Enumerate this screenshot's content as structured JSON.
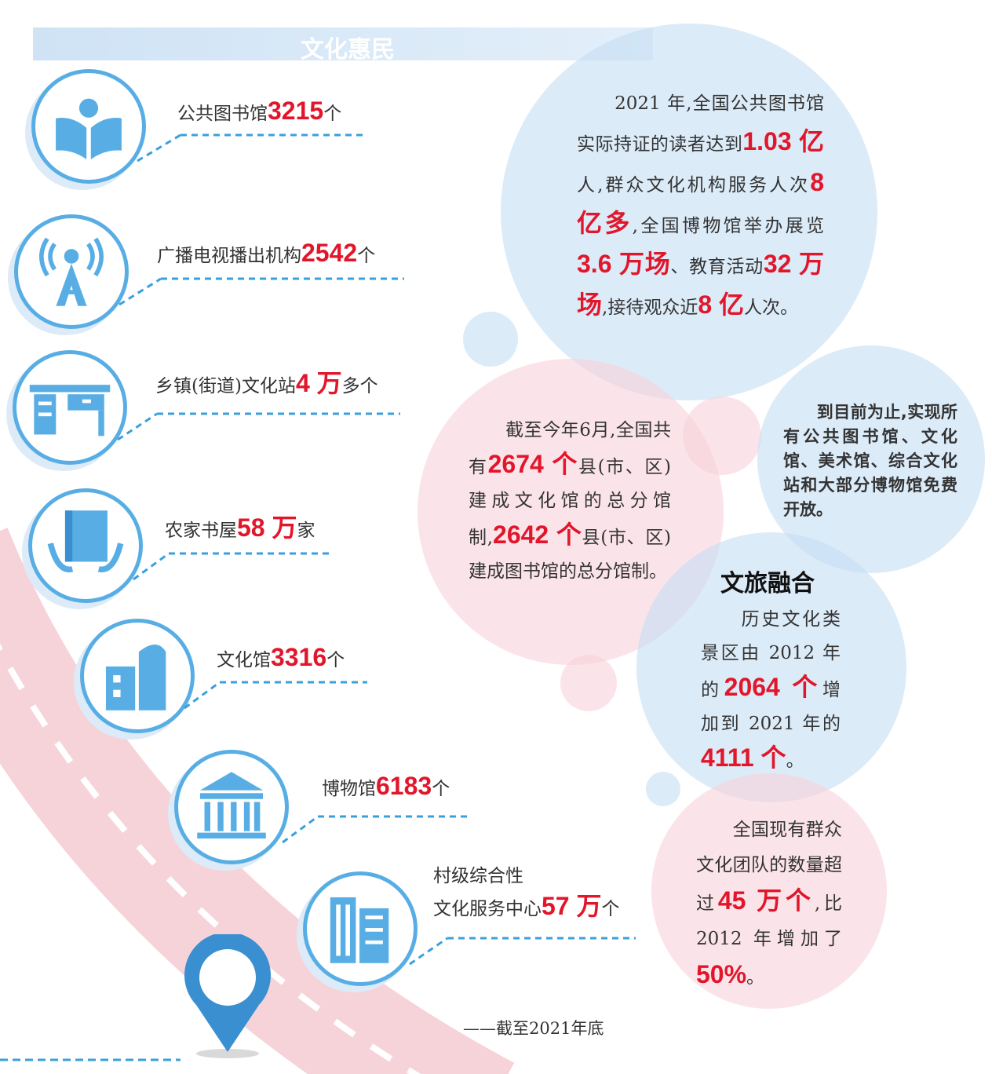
{
  "header": {
    "title": "文化惠民"
  },
  "colors": {
    "accent_red": "#e2162b",
    "blue": "#58aee4",
    "light_blue": "#c4def4",
    "pink": "#f8d2da"
  },
  "items": [
    {
      "icon": "library-reader-icon",
      "pre": "公共图书馆",
      "num": "3215",
      "post": "个"
    },
    {
      "icon": "broadcast-tower-icon",
      "pre": "广播电视播出机构",
      "num": "2542",
      "post": "个"
    },
    {
      "icon": "culture-station-desk-icon",
      "pre": "乡镇(街道)文化站",
      "num": "4 万",
      "post": "多个"
    },
    {
      "icon": "book-hands-icon",
      "pre": "农家书屋",
      "num": "58 万",
      "post": "家"
    },
    {
      "icon": "culture-hall-building-icon",
      "pre": "文化馆",
      "num": "3316",
      "post": "个"
    },
    {
      "icon": "museum-icon",
      "pre": "博物馆",
      "num": "6183",
      "post": "个"
    },
    {
      "icon": "service-center-building-icon",
      "pre": "村级综合性",
      "pre2": "文化服务中心",
      "num": "57 万",
      "post": "个"
    }
  ],
  "bubbles": {
    "readers": [
      {
        "t": "　　2021 年,全国公共图书馆实际持证的读者达到"
      },
      {
        "t": "1.03 亿",
        "hl": true
      },
      {
        "t": "人,群众文化机构服务人次"
      },
      {
        "t": "8 亿多",
        "hl": true
      },
      {
        "t": ",全国博物馆举办展览"
      },
      {
        "t": "3.6 万场",
        "hl": true
      },
      {
        "t": "、教育活动"
      },
      {
        "t": "32 万场",
        "hl": true
      },
      {
        "t": ",接待观众近"
      },
      {
        "t": "8 亿",
        "hl": true
      },
      {
        "t": "人次。"
      }
    ],
    "branch": [
      {
        "t": "　　截至今年6月,全国共有"
      },
      {
        "t": "2674 个",
        "hl": true
      },
      {
        "t": "县(市、区)建成文化馆的总分馆制,"
      },
      {
        "t": "2642 个",
        "hl": true
      },
      {
        "t": "县(市、区)建成图书馆的总分馆制。"
      }
    ],
    "free": [
      {
        "t": "　　到目前为止,实现所有公共图书馆、文化馆、美术馆、综合文化站和大部分博物馆免费开放。"
      }
    ],
    "tourism_title": "文旅融合",
    "tourism": [
      {
        "t": "　　历史文化类景区由 2012 年的"
      },
      {
        "t": "2064 个",
        "hl": true
      },
      {
        "t": "增加到 2021 年的"
      },
      {
        "t": "4111 个",
        "hl": true
      },
      {
        "t": "。"
      }
    ],
    "groups": [
      {
        "t": "　　全国现有群众文化团队的数量超过"
      },
      {
        "t": "45 万个",
        "hl": true
      },
      {
        "t": ",比 2012 年增加了"
      },
      {
        "t": "50%",
        "hl": true
      },
      {
        "t": "。"
      }
    ]
  },
  "footer": {
    "note": "——截至2021年底"
  }
}
